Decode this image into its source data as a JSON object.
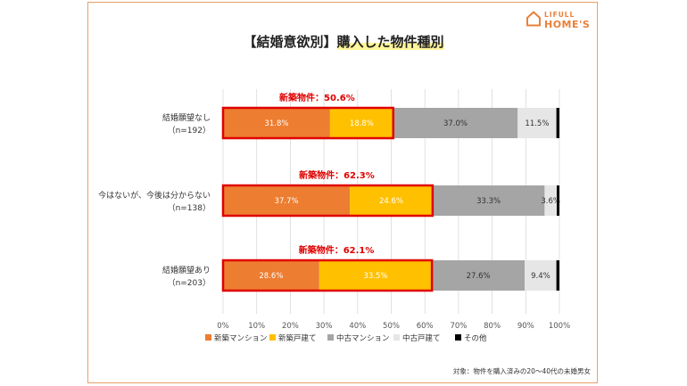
{
  "header": {
    "title_part1": "【結婚意欲別】",
    "title_part2": "購入した物件種別",
    "logo_top": "LIFULL",
    "logo_bottom": "HOME'S"
  },
  "footnote": "対象：物件を購入済みの20～40代の未婚男女",
  "colors": {
    "new_mansion": "#ed7d31",
    "new_house": "#ffc000",
    "used_mansion": "#a5a5a5",
    "used_house": "#e7e6e6",
    "other": "#000000",
    "highlight_box": "#e00000",
    "brand": "#e8803a"
  },
  "chart_data": {
    "type": "bar",
    "orientation": "horizontal",
    "stacked": true,
    "categories": [
      "結婚願望なし\n（n=192）",
      "今はないが、今後は分からない\n（n=138）",
      "結婚願望あり\n（n=203）"
    ],
    "series": [
      {
        "name": "新築マンション",
        "values": [
          31.8,
          37.7,
          28.6
        ],
        "labels": [
          "31.8%",
          "37.7%",
          "28.6%"
        ]
      },
      {
        "name": "新築戸建て",
        "values": [
          18.8,
          24.6,
          33.5
        ],
        "labels": [
          "18.8%",
          "24.6%",
          "33.5%"
        ]
      },
      {
        "name": "中古マンション",
        "values": [
          37.0,
          33.3,
          27.6
        ],
        "labels": [
          "37.0%",
          "33.3%",
          "27.6%"
        ]
      },
      {
        "name": "中古戸建て",
        "values": [
          11.5,
          3.6,
          9.4
        ],
        "labels": [
          "11.5%",
          "3.6%",
          "9.4%"
        ]
      },
      {
        "name": "その他",
        "values": [
          0.9,
          0.8,
          0.9
        ],
        "labels": [
          "",
          "",
          ""
        ]
      }
    ],
    "annotations": [
      "新築物件：50.6%",
      "新築物件：62.3%",
      "新築物件：62.1%"
    ],
    "xlim": [
      0,
      100
    ],
    "xticks": [
      "0%",
      "10%",
      "20%",
      "30%",
      "40%",
      "50%",
      "60%",
      "70%",
      "80%",
      "90%",
      "100%"
    ],
    "grid": true,
    "legend": "bottom"
  }
}
